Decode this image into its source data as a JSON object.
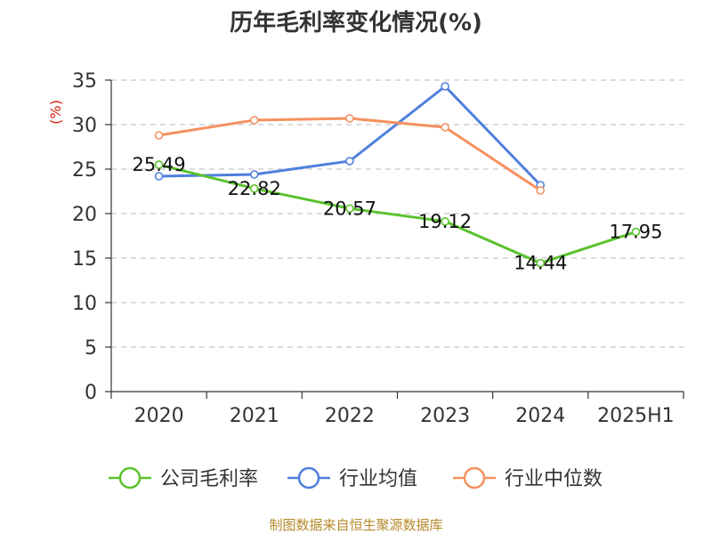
{
  "chart_data": {
    "type": "line",
    "title": "历年毛利率变化情况(%)",
    "ylabel": "(%)",
    "categories": [
      "2020",
      "2021",
      "2022",
      "2023",
      "2024",
      "2025H1"
    ],
    "ylim": [
      0,
      35
    ],
    "yticks": [
      "0",
      "5",
      "10",
      "15",
      "20",
      "25",
      "30",
      "35"
    ],
    "grid": true,
    "legend_position": "bottom",
    "series": [
      {
        "name": "公司毛利率",
        "color": "#5ac22d",
        "values": [
          25.49,
          22.82,
          20.57,
          19.12,
          14.44,
          17.95
        ],
        "labels": [
          "25.49",
          "22.82",
          "20.57",
          "19.12",
          "14.44",
          "17.95"
        ]
      },
      {
        "name": "行业均值",
        "color": "#4f7fdd",
        "values": [
          24.2,
          24.4,
          25.9,
          34.3,
          23.2,
          null
        ]
      },
      {
        "name": "行业中位数",
        "color": "#f4915e",
        "values": [
          28.8,
          30.5,
          30.7,
          29.7,
          22.6,
          null
        ]
      }
    ],
    "source": "制图数据来自恒生聚源数据库"
  }
}
